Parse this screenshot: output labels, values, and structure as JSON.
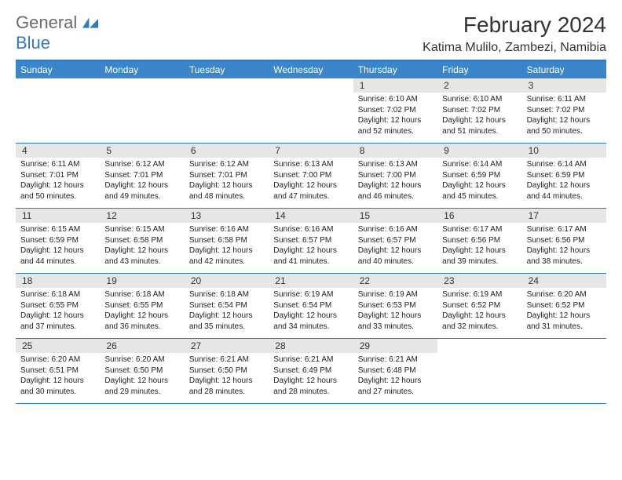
{
  "brand": {
    "part1": "General",
    "part2": "Blue"
  },
  "title": "February 2024",
  "location": "Katima Mulilo, Zambezi, Namibia",
  "colors": {
    "header_bg": "#3a86c8",
    "border": "#2f7ac0",
    "daynum_bg": "#e6e6e6",
    "text": "#222222",
    "logo_gray": "#6a6a6a",
    "logo_blue": "#2f7ac0",
    "background": "#ffffff"
  },
  "typography": {
    "title_fontsize": 28,
    "location_fontsize": 16,
    "dow_fontsize": 12,
    "daynum_fontsize": 12,
    "info_fontsize": 10
  },
  "days_of_week": [
    "Sunday",
    "Monday",
    "Tuesday",
    "Wednesday",
    "Thursday",
    "Friday",
    "Saturday"
  ],
  "weeks": [
    [
      null,
      null,
      null,
      null,
      {
        "n": "1",
        "sunrise": "6:10 AM",
        "sunset": "7:02 PM",
        "dl1": "Daylight: 12 hours",
        "dl2": "and 52 minutes."
      },
      {
        "n": "2",
        "sunrise": "6:10 AM",
        "sunset": "7:02 PM",
        "dl1": "Daylight: 12 hours",
        "dl2": "and 51 minutes."
      },
      {
        "n": "3",
        "sunrise": "6:11 AM",
        "sunset": "7:02 PM",
        "dl1": "Daylight: 12 hours",
        "dl2": "and 50 minutes."
      }
    ],
    [
      {
        "n": "4",
        "sunrise": "6:11 AM",
        "sunset": "7:01 PM",
        "dl1": "Daylight: 12 hours",
        "dl2": "and 50 minutes."
      },
      {
        "n": "5",
        "sunrise": "6:12 AM",
        "sunset": "7:01 PM",
        "dl1": "Daylight: 12 hours",
        "dl2": "and 49 minutes."
      },
      {
        "n": "6",
        "sunrise": "6:12 AM",
        "sunset": "7:01 PM",
        "dl1": "Daylight: 12 hours",
        "dl2": "and 48 minutes."
      },
      {
        "n": "7",
        "sunrise": "6:13 AM",
        "sunset": "7:00 PM",
        "dl1": "Daylight: 12 hours",
        "dl2": "and 47 minutes."
      },
      {
        "n": "8",
        "sunrise": "6:13 AM",
        "sunset": "7:00 PM",
        "dl1": "Daylight: 12 hours",
        "dl2": "and 46 minutes."
      },
      {
        "n": "9",
        "sunrise": "6:14 AM",
        "sunset": "6:59 PM",
        "dl1": "Daylight: 12 hours",
        "dl2": "and 45 minutes."
      },
      {
        "n": "10",
        "sunrise": "6:14 AM",
        "sunset": "6:59 PM",
        "dl1": "Daylight: 12 hours",
        "dl2": "and 44 minutes."
      }
    ],
    [
      {
        "n": "11",
        "sunrise": "6:15 AM",
        "sunset": "6:59 PM",
        "dl1": "Daylight: 12 hours",
        "dl2": "and 44 minutes."
      },
      {
        "n": "12",
        "sunrise": "6:15 AM",
        "sunset": "6:58 PM",
        "dl1": "Daylight: 12 hours",
        "dl2": "and 43 minutes."
      },
      {
        "n": "13",
        "sunrise": "6:16 AM",
        "sunset": "6:58 PM",
        "dl1": "Daylight: 12 hours",
        "dl2": "and 42 minutes."
      },
      {
        "n": "14",
        "sunrise": "6:16 AM",
        "sunset": "6:57 PM",
        "dl1": "Daylight: 12 hours",
        "dl2": "and 41 minutes."
      },
      {
        "n": "15",
        "sunrise": "6:16 AM",
        "sunset": "6:57 PM",
        "dl1": "Daylight: 12 hours",
        "dl2": "and 40 minutes."
      },
      {
        "n": "16",
        "sunrise": "6:17 AM",
        "sunset": "6:56 PM",
        "dl1": "Daylight: 12 hours",
        "dl2": "and 39 minutes."
      },
      {
        "n": "17",
        "sunrise": "6:17 AM",
        "sunset": "6:56 PM",
        "dl1": "Daylight: 12 hours",
        "dl2": "and 38 minutes."
      }
    ],
    [
      {
        "n": "18",
        "sunrise": "6:18 AM",
        "sunset": "6:55 PM",
        "dl1": "Daylight: 12 hours",
        "dl2": "and 37 minutes."
      },
      {
        "n": "19",
        "sunrise": "6:18 AM",
        "sunset": "6:55 PM",
        "dl1": "Daylight: 12 hours",
        "dl2": "and 36 minutes."
      },
      {
        "n": "20",
        "sunrise": "6:18 AM",
        "sunset": "6:54 PM",
        "dl1": "Daylight: 12 hours",
        "dl2": "and 35 minutes."
      },
      {
        "n": "21",
        "sunrise": "6:19 AM",
        "sunset": "6:54 PM",
        "dl1": "Daylight: 12 hours",
        "dl2": "and 34 minutes."
      },
      {
        "n": "22",
        "sunrise": "6:19 AM",
        "sunset": "6:53 PM",
        "dl1": "Daylight: 12 hours",
        "dl2": "and 33 minutes."
      },
      {
        "n": "23",
        "sunrise": "6:19 AM",
        "sunset": "6:52 PM",
        "dl1": "Daylight: 12 hours",
        "dl2": "and 32 minutes."
      },
      {
        "n": "24",
        "sunrise": "6:20 AM",
        "sunset": "6:52 PM",
        "dl1": "Daylight: 12 hours",
        "dl2": "and 31 minutes."
      }
    ],
    [
      {
        "n": "25",
        "sunrise": "6:20 AM",
        "sunset": "6:51 PM",
        "dl1": "Daylight: 12 hours",
        "dl2": "and 30 minutes."
      },
      {
        "n": "26",
        "sunrise": "6:20 AM",
        "sunset": "6:50 PM",
        "dl1": "Daylight: 12 hours",
        "dl2": "and 29 minutes."
      },
      {
        "n": "27",
        "sunrise": "6:21 AM",
        "sunset": "6:50 PM",
        "dl1": "Daylight: 12 hours",
        "dl2": "and 28 minutes."
      },
      {
        "n": "28",
        "sunrise": "6:21 AM",
        "sunset": "6:49 PM",
        "dl1": "Daylight: 12 hours",
        "dl2": "and 28 minutes."
      },
      {
        "n": "29",
        "sunrise": "6:21 AM",
        "sunset": "6:48 PM",
        "dl1": "Daylight: 12 hours",
        "dl2": "and 27 minutes."
      },
      null,
      null
    ]
  ],
  "labels": {
    "sunrise": "Sunrise: ",
    "sunset": "Sunset: "
  }
}
